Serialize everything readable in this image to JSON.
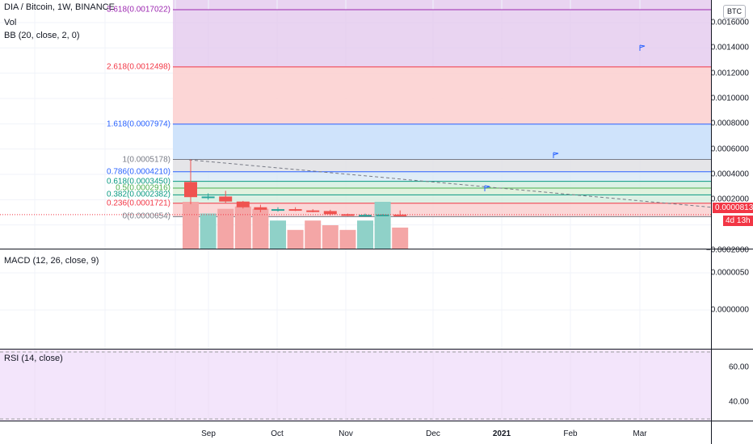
{
  "legend": {
    "symbol": "DIA / Bitcoin, 1W, BINANCE",
    "vol": "Vol",
    "bb": "BB (20, close, 2, 0)"
  },
  "currency_badge": "BTC",
  "fib_levels": [
    {
      "label": "3.618(0.0017022)",
      "value": 0.0017022,
      "color": "#9c27b0"
    },
    {
      "label": "2.618(0.0012498)",
      "value": 0.0012498,
      "color": "#f23645"
    },
    {
      "label": "1.618(0.0007974)",
      "value": 0.0007974,
      "color": "#2962ff"
    },
    {
      "label": "1(0.0005178)",
      "value": 0.0005178,
      "color": "#787b86"
    },
    {
      "label": "0.786(0.0004210)",
      "value": 0.000421,
      "color": "#2962ff"
    },
    {
      "label": "0.618(0.0003450)",
      "value": 0.000345,
      "color": "#089981"
    },
    {
      "label": "0.5(0.0002916)",
      "value": 0.0002916,
      "color": "#4caf50"
    },
    {
      "label": "0.382(0.0002382)",
      "value": 0.0002382,
      "color": "#089981"
    },
    {
      "label": "0.236(0.0001721)",
      "value": 0.0001721,
      "color": "#f23645"
    },
    {
      "label": "0(0.0000654)",
      "value": 6.54e-05,
      "color": "#787b86"
    }
  ],
  "price_axis": [
    "0.0016000",
    "0.0014000",
    "0.0012000",
    "0.0010000",
    "0.0008000",
    "0.0006000",
    "0.0004000",
    "0.0002000",
    "−0.0002000"
  ],
  "last_price": "0.0000813",
  "countdown": "4d 13h",
  "macd": {
    "label": "MACD (12, 26, close, 9)",
    "axis": [
      "0.0000050",
      "0.0000000"
    ]
  },
  "rsi": {
    "label": "RSI (14, close)",
    "axis": [
      "60.00",
      "40.00"
    ]
  },
  "time_axis": [
    {
      "label": "Sep",
      "bold": false
    },
    {
      "label": "Oct",
      "bold": false
    },
    {
      "label": "Nov",
      "bold": false
    },
    {
      "label": "Dec",
      "bold": false
    },
    {
      "label": "2021",
      "bold": true
    },
    {
      "label": "Feb",
      "bold": false
    },
    {
      "label": "Mar",
      "bold": false
    }
  ],
  "chart_data": {
    "type": "candlestick",
    "symbol": "DIA / Bitcoin",
    "interval": "1W",
    "exchange": "BINANCE",
    "candles": [
      {
        "week": "Aug 24",
        "open": 0.00034,
        "high": 0.000518,
        "low": 0.000165,
        "close": 0.00022
      },
      {
        "week": "Aug 31",
        "open": 0.00022,
        "high": 0.00025,
        "low": 0.0002,
        "close": 0.000225
      },
      {
        "week": "Sep 7",
        "open": 0.000225,
        "high": 0.00027,
        "low": 0.000175,
        "close": 0.000185
      },
      {
        "week": "Sep 14",
        "open": 0.000185,
        "high": 0.00019,
        "low": 0.00013,
        "close": 0.00014
      },
      {
        "week": "Sep 21",
        "open": 0.00014,
        "high": 0.00016,
        "low": 0.0001,
        "close": 0.00012
      },
      {
        "week": "Sep 28",
        "open": 0.00012,
        "high": 0.00014,
        "low": 0.000105,
        "close": 0.000125
      },
      {
        "week": "Oct 5",
        "open": 0.000125,
        "high": 0.00014,
        "low": 0.00011,
        "close": 0.000115
      },
      {
        "week": "Oct 12",
        "open": 0.000115,
        "high": 0.000125,
        "low": 0.0001,
        "close": 0.00011
      },
      {
        "week": "Oct 19",
        "open": 0.00011,
        "high": 0.00012,
        "low": 7.5e-05,
        "close": 8.5e-05
      },
      {
        "week": "Oct 26",
        "open": 8.5e-05,
        "high": 9e-05,
        "low": 7e-05,
        "close": 7.5e-05
      },
      {
        "week": "Nov 2",
        "open": 7.5e-05,
        "high": 9e-05,
        "low": 6.5e-05,
        "close": 8e-05
      },
      {
        "week": "Nov 9",
        "open": 8e-05,
        "high": 8.5e-05,
        "low": 7.5e-05,
        "close": 8.2e-05
      },
      {
        "week": "Nov 16",
        "open": 8.2e-05,
        "high": 0.000115,
        "low": 7e-05,
        "close": 8.1e-05
      }
    ],
    "volume_colors": [
      "down",
      "up",
      "down",
      "down",
      "down",
      "up",
      "down",
      "down",
      "down",
      "down",
      "up",
      "up",
      "down"
    ],
    "volume_values": [
      1.0,
      0.75,
      0.85,
      0.9,
      0.85,
      0.6,
      0.4,
      0.6,
      0.5,
      0.4,
      0.6,
      1.0,
      0.45
    ],
    "ylim": [
      -0.00021,
      0.00175
    ]
  }
}
